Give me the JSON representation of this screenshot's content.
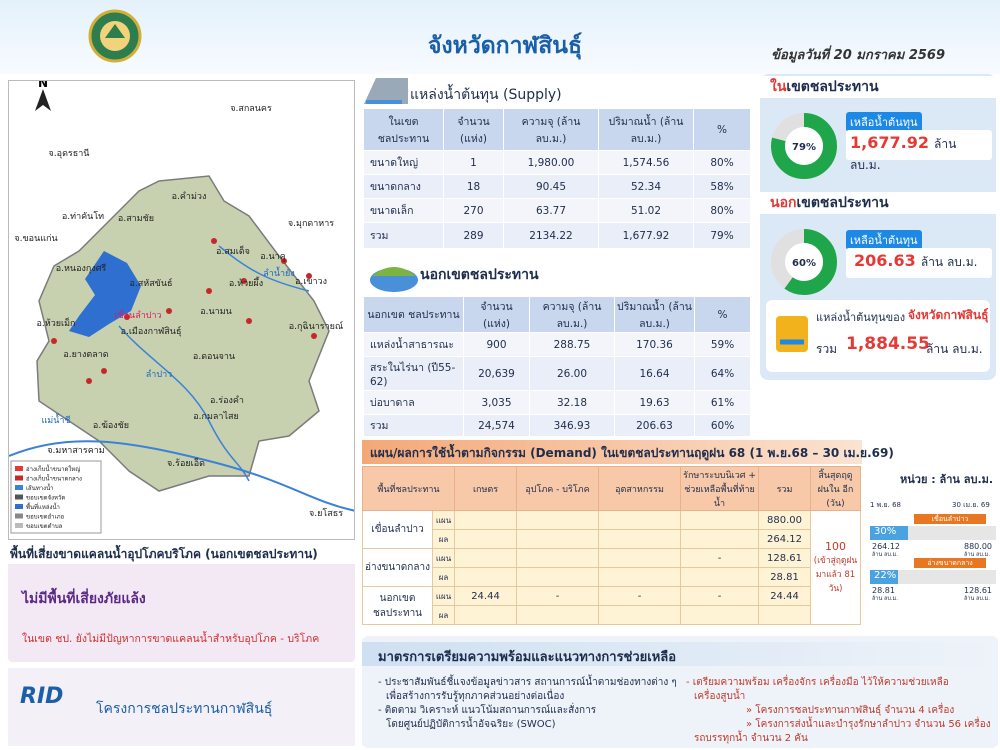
{
  "header": {
    "title": "จังหวัดกาฬสินธุ์",
    "date": "ข้อมูลวันที่ 20 มกราคม 2569"
  },
  "map": {
    "north": "N",
    "labels": [
      "จ.สกลนคร",
      "จ.อุดรธานี",
      "จ.มุกดาหาร",
      "จ.ขอนแก่น",
      "อ.คำม่วง",
      "อ.สามชัย",
      "อ.ท่าคันโท",
      "อ.หนองกุงศรี",
      "อ.สมเด็จ",
      "อ.นาคู",
      "อ.สหัสขันธ์",
      "อ.ห้วยผึ้ง",
      "อ.เขาวง",
      "อ.ห้วยเม็ก",
      "เขื่อนลำปาว",
      "อ.เมืองกาฬสินธุ์",
      "อ.นามน",
      "อ.กุฉินารายณ์",
      "อ.ยางตลาด",
      "อ.ดอนจาน",
      "อ.ร่องคำ",
      "อ.กมลาไสย",
      "อ.ฆ้องชัย",
      "แม่น้ำชี",
      "ลำปาว",
      "ลำน้ำยัง",
      "จ.มหาสารคาม",
      "จ.ร้อยเอ็ด",
      "จ.ยโสธร"
    ],
    "legend": [
      "อ่างเก็บน้ำขนาดใหญ่",
      "อ่างเก็บน้ำขนาดกลาง",
      "เส้นทางน้ำ",
      "ขอบเขตจังหวัด",
      "พื้นที่แหล่งน้ำ",
      "ขอบเขตอำเภอ",
      "ขอบเขตตำบล"
    ]
  },
  "risk": {
    "title": "พื้นที่เสี่ยงขาดแคลนน้ำอุปโภคบริโภค (นอกเขตชลประทาน)",
    "status": "ไม่มีพื้นที่เสี่ยงภัยแล้ง",
    "note": "ในเขต ชป. ยังไม่มีปัญหาการขาดแคลนน้ำสำหรับอุปโภค - บริโภค"
  },
  "footer": {
    "logo": "RID",
    "org": "โครงการชลประทานกาฬสินธุ์"
  },
  "supply": {
    "title": "แหล่งน้ำต้นทุน (Supply)",
    "headers": [
      "ในเขต ชลประทาน",
      "จำนวน (แห่ง)",
      "ความจุ (ล้าน ลบ.ม.)",
      "ปริมาณน้ำ (ล้าน ลบ.ม.)",
      "%"
    ],
    "rows": [
      [
        "ขนาดใหญ่",
        "1",
        "1,980.00",
        "1,574.56",
        "80%"
      ],
      [
        "ขนาดกลาง",
        "18",
        "90.45",
        "52.34",
        "58%"
      ],
      [
        "ขนาดเล็ก",
        "270",
        "63.77",
        "51.02",
        "80%"
      ],
      [
        "รวม",
        "289",
        "2134.22",
        "1,677.92",
        "79%"
      ]
    ]
  },
  "outside": {
    "title": "นอกเขตชลประทาน",
    "headers": [
      "นอกเขต ชลประทาน",
      "จำนวน (แห่ง)",
      "ความจุ (ล้าน ลบ.ม.)",
      "ปริมาณน้ำ (ล้าน ลบ.ม.)",
      "%"
    ],
    "rows": [
      [
        "แหล่งน้ำสาธารณะ",
        "900",
        "288.75",
        "170.36",
        "59%"
      ],
      [
        "สระในไร่นา (ปี55-62)",
        "20,639",
        "26.00",
        "16.64",
        "64%"
      ],
      [
        "บ่อบาดาล",
        "3,035",
        "32.18",
        "19.63",
        "61%"
      ],
      [
        "รวม",
        "24,574",
        "346.93",
        "206.63",
        "60%"
      ]
    ]
  },
  "summary": {
    "inside": {
      "title_prefix": "ใน",
      "title_rest": "เขตชลประทาน",
      "percent": {
        "value": 79,
        "label": "79%"
      },
      "remaining_label": "เหลือน้ำต้นทุน",
      "amount": "1,677.92",
      "unit": "ล้าน ลบ.ม."
    },
    "outside": {
      "title_prefix": "นอก",
      "title_rest": "เขตชลประทาน",
      "percent": {
        "value": 60,
        "label": "60%"
      },
      "remaining_label": "เหลือน้ำต้นทุน",
      "amount": "206.63",
      "unit": "ล้าน ลบ.ม."
    },
    "total": {
      "label": "แหล่งน้ำต้นทุนของ",
      "province": "จังหวัดกาฬสินธุ์",
      "sum_label": "รวม",
      "amount": "1,884.55",
      "unit": "ล้าน ลบ.ม."
    }
  },
  "demand": {
    "title": "แผน/ผลการใช้น้ำตามกิจกรรม (Demand) ในเขตชลประทานฤดูฝน 68 (1 พ.ย.68 – 30 เม.ย.69)",
    "headers": [
      "พื้นที่ชลประทาน",
      "เกษตร",
      "อุปโภค - บริโภค",
      "อุตสาหกรรม",
      "รักษาระบบนิเวศ + ช่วยเหลือพื้นที่ท้าย น้ำ",
      "รวม",
      "สิ้นสุดฤดูฝนใน อีก (วัน)"
    ],
    "plan_label": "แผน",
    "result_label": "ผล",
    "rows": [
      {
        "area": "เขื่อนลำปาว",
        "plan": [
          null,
          null,
          null,
          null,
          "880.00"
        ],
        "result": [
          null,
          null,
          null,
          null,
          "264.12"
        ]
      },
      {
        "area": "อ่างขนาดกลาง",
        "plan": [
          null,
          null,
          null,
          "-",
          "128.61"
        ],
        "result": [
          null,
          null,
          null,
          null,
          "28.81"
        ]
      },
      {
        "area": "นอกเขต ชลประทาน",
        "plan": [
          "24.44",
          "-",
          "-",
          "-",
          "24.44"
        ],
        "result": [
          null,
          null,
          null,
          null,
          null
        ]
      }
    ],
    "days_remaining": "100",
    "days_note": "(เข้าสู่ฤดูฝน มาแล้ว 81 วัน)"
  },
  "progress": {
    "unit": "หน่วย : ล้าน ลบ.ม.",
    "start": "1 พ.ย. 68",
    "end": "30 เม.ย. 69",
    "unit_short": "ล้าน ลบ.ม.",
    "items": [
      {
        "name": "เขื่อนลำปาว",
        "percent": {
          "value": 30,
          "label": "30%"
        },
        "used": "264.12",
        "plan": "880.00"
      },
      {
        "name": "อ่างขนาดกลาง",
        "percent": {
          "value": 22,
          "label": "22%"
        },
        "used": "28.81",
        "plan": "128.61"
      }
    ]
  },
  "measures": {
    "title": "มาตรการเตรียมความพร้อมและแนวทางการช่วยเหลือ",
    "left": [
      "- ประชาสัมพันธ์ชี้แจงข้อมูลข่าวสาร สถานการณ์น้ำตามช่องทางต่าง ๆ",
      "เพื่อสร้างการรับรู้ทุกภาคส่วนอย่างต่อเนื่อง",
      "- ติดตาม วิเคราะห์ แนวโน้มสถานการณ์และสั่งการ",
      "โดยศูนย์ปฏิบัติการน้ำอัจฉริยะ (SWOC)"
    ],
    "right": [
      "- เตรียมความพร้อม เครื่องจักร เครื่องมือ ไว้ให้ความช่วยเหลือ",
      "เครื่องสูบน้ำ",
      "» โครงการชลประทานกาฬสินธุ์ จำนวน 4 เครื่อง",
      "» โครงการส่งน้ำและบำรุงรักษาลำปาว จำนวน 56 เครื่อง",
      "รถบรรทุกน้ำ จำนวน 2 คัน"
    ]
  }
}
